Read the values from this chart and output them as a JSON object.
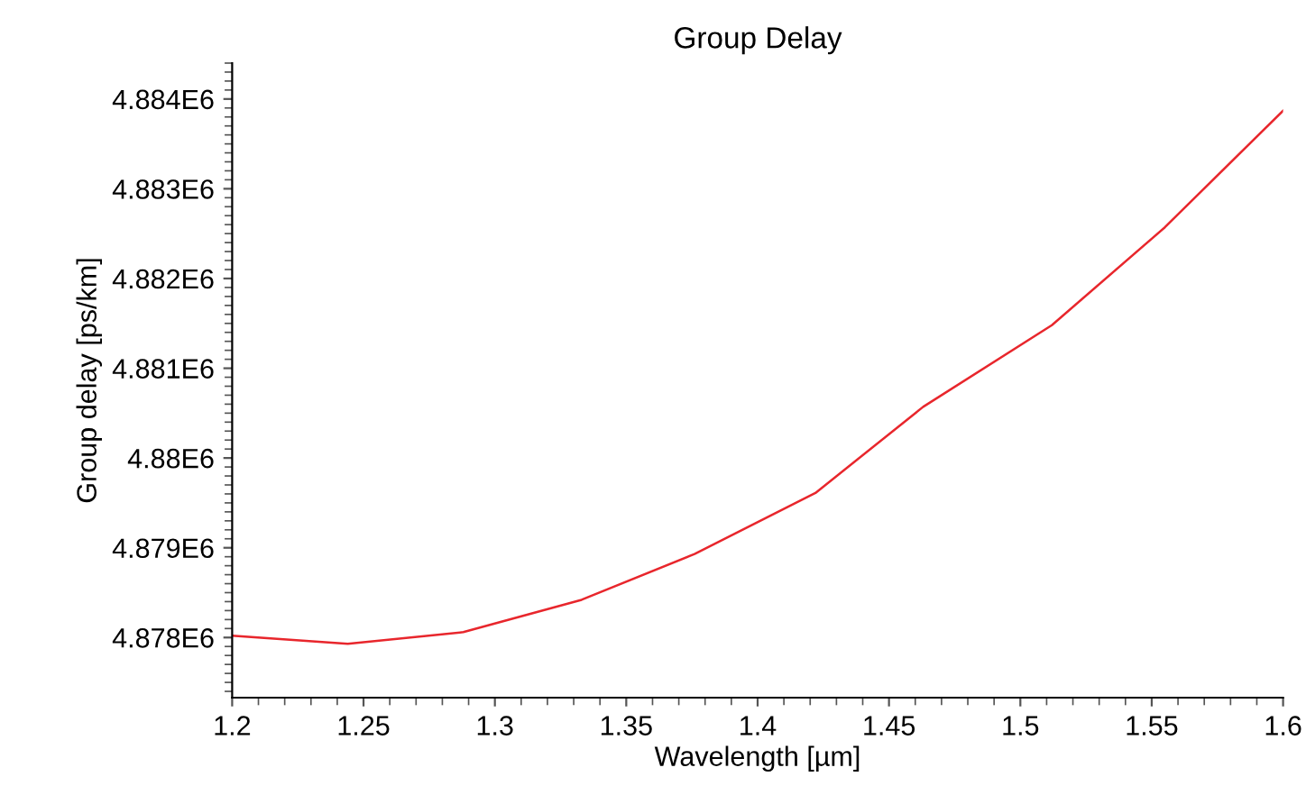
{
  "chart_data": {
    "type": "line",
    "title": "Group Delay",
    "xlabel": "Wavelength [µm]",
    "ylabel": "Group delay [ps/km]",
    "x": [
      1.2,
      1.244,
      1.288,
      1.333,
      1.376,
      1.422,
      1.463,
      1.512,
      1.555,
      1.6
    ],
    "series": [
      {
        "color": "#e8262c",
        "values": [
          4878020,
          4877930,
          4878060,
          4878420,
          4878930,
          4879610,
          4880570,
          4881480,
          4882570,
          4883870
        ]
      }
    ],
    "xlim": [
      1.2,
      1.6
    ],
    "xticks": [
      {
        "value": 1.2,
        "label": "1.2"
      },
      {
        "value": 1.25,
        "label": "1.25"
      },
      {
        "value": 1.3,
        "label": "1.3"
      },
      {
        "value": 1.35,
        "label": "1.35"
      },
      {
        "value": 1.4,
        "label": "1.4"
      },
      {
        "value": 1.45,
        "label": "1.45"
      },
      {
        "value": 1.5,
        "label": "1.5"
      },
      {
        "value": 1.55,
        "label": "1.55"
      },
      {
        "value": 1.6,
        "label": "1.6"
      }
    ],
    "ylim": [
      4877330,
      4884400
    ],
    "yticks": [
      {
        "value": 4878000,
        "label": "4.878E6"
      },
      {
        "value": 4879000,
        "label": "4.879E6"
      },
      {
        "value": 4880000,
        "label": "4.88E6"
      },
      {
        "value": 4881000,
        "label": "4.881E6"
      },
      {
        "value": 4882000,
        "label": "4.882E6"
      },
      {
        "value": 4883000,
        "label": "4.883E6"
      },
      {
        "value": 4884000,
        "label": "4.884E6"
      }
    ],
    "marker": "none",
    "line_style": "solid"
  }
}
